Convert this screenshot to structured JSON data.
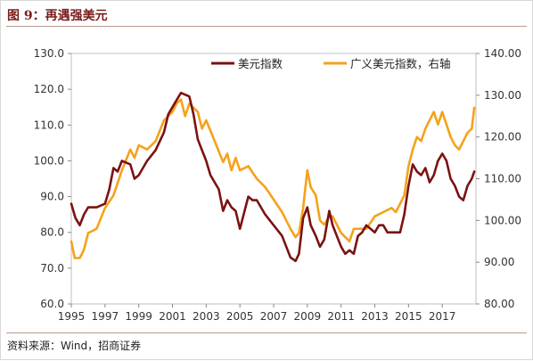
{
  "header": {
    "title": "图 9：再遇强美元"
  },
  "footer": {
    "source": "资料来源：Wind，招商证券"
  },
  "chart_data": {
    "type": "line",
    "x_ticks": [
      "1995",
      "1997",
      "1999",
      "2001",
      "2003",
      "2005",
      "2007",
      "2009",
      "2011",
      "2013",
      "2015",
      "2017"
    ],
    "xlim": [
      1995,
      2019
    ],
    "ylim_left": [
      60,
      130
    ],
    "ylim_right": [
      80,
      140
    ],
    "left_ticks": [
      "60.0",
      "70.0",
      "80.0",
      "90.0",
      "100.0",
      "110.0",
      "120.0",
      "130.0"
    ],
    "right_ticks": [
      "80.00",
      "90.00",
      "100.00",
      "110.00",
      "120.00",
      "130.00",
      "140.00"
    ],
    "legend_position": "top-right",
    "colors": {
      "usd_index": "#7b1212",
      "broad_index": "#f5a21b"
    },
    "series": [
      {
        "name": "美元指数",
        "axis": "left",
        "x": [
          1995.0,
          1995.25,
          1995.5,
          1995.75,
          1996.0,
          1996.5,
          1997.0,
          1997.25,
          1997.5,
          1997.75,
          1998.0,
          1998.5,
          1998.75,
          1999.0,
          1999.5,
          2000.0,
          2000.5,
          2000.75,
          2001.0,
          2001.25,
          2001.5,
          2002.0,
          2002.25,
          2002.5,
          2002.75,
          2003.0,
          2003.25,
          2003.5,
          2003.75,
          2004.0,
          2004.25,
          2004.5,
          2004.75,
          2005.0,
          2005.5,
          2005.75,
          2006.0,
          2006.5,
          2007.0,
          2007.5,
          2007.75,
          2008.0,
          2008.3,
          2008.5,
          2008.75,
          2009.0,
          2009.2,
          2009.5,
          2009.75,
          2010.0,
          2010.3,
          2010.5,
          2010.75,
          2011.0,
          2011.25,
          2011.5,
          2011.75,
          2012.0,
          2012.25,
          2012.5,
          2012.75,
          2013.0,
          2013.25,
          2013.5,
          2013.75,
          2014.0,
          2014.25,
          2014.5,
          2014.75,
          2015.0,
          2015.25,
          2015.5,
          2015.75,
          2016.0,
          2016.25,
          2016.5,
          2016.75,
          2017.0,
          2017.25,
          2017.5,
          2017.75,
          2018.0,
          2018.25,
          2018.5,
          2018.75,
          2018.9
        ],
        "values": [
          88,
          84,
          82,
          85,
          87,
          87,
          88,
          92,
          98,
          97,
          100,
          99,
          95,
          96,
          100,
          103,
          108,
          113,
          115,
          117,
          119,
          118,
          113,
          106,
          103,
          100,
          96,
          94,
          92,
          86,
          89,
          87,
          86,
          81,
          90,
          89,
          89,
          85,
          82,
          79,
          76,
          73,
          72,
          74,
          84,
          87,
          82,
          79,
          76,
          78,
          86,
          82,
          79,
          76,
          74,
          75,
          74,
          79,
          80,
          82,
          81,
          80,
          82,
          82,
          80,
          80,
          80,
          80,
          85,
          93,
          99,
          97,
          96,
          98,
          94,
          96,
          100,
          102,
          100,
          95,
          93,
          90,
          89,
          93,
          95,
          97
        ]
      },
      {
        "name": "广义美元指数，右轴",
        "axis": "right",
        "x": [
          1995.0,
          1995.2,
          1995.5,
          1995.75,
          1996.0,
          1996.5,
          1997.0,
          1997.5,
          1998.0,
          1998.5,
          1998.75,
          1999.0,
          1999.5,
          2000.0,
          2000.5,
          2001.0,
          2001.25,
          2001.5,
          2001.75,
          2002.0,
          2002.25,
          2002.5,
          2002.75,
          2003.0,
          2003.5,
          2004.0,
          2004.25,
          2004.5,
          2004.75,
          2005.0,
          2005.5,
          2006.0,
          2006.5,
          2007.0,
          2007.5,
          2007.75,
          2008.0,
          2008.3,
          2008.5,
          2008.75,
          2009.0,
          2009.2,
          2009.5,
          2009.75,
          2010.0,
          2010.3,
          2010.5,
          2010.75,
          2011.0,
          2011.25,
          2011.5,
          2011.75,
          2012.0,
          2012.5,
          2013.0,
          2013.5,
          2014.0,
          2014.25,
          2014.5,
          2014.75,
          2015.0,
          2015.25,
          2015.5,
          2015.75,
          2016.0,
          2016.25,
          2016.5,
          2016.75,
          2017.0,
          2017.25,
          2017.5,
          2017.75,
          2018.0,
          2018.25,
          2018.5,
          2018.75,
          2018.9
        ],
        "values": [
          95,
          91,
          91,
          93,
          97,
          98,
          103,
          106,
          112,
          117,
          115,
          118,
          117,
          119,
          124,
          126,
          128,
          129,
          125,
          128,
          127,
          126,
          122,
          124,
          119,
          114,
          116,
          112,
          115,
          112,
          113,
          110,
          108,
          105,
          102,
          100,
          98,
          96,
          97,
          103,
          112,
          108,
          106,
          100,
          99,
          101,
          101,
          99,
          97,
          96,
          95,
          98,
          98,
          98,
          101,
          102,
          103,
          102,
          104,
          106,
          113,
          117,
          120,
          119,
          122,
          124,
          126,
          123,
          126,
          123,
          120,
          118,
          117,
          119,
          121,
          122,
          127
        ]
      }
    ]
  }
}
